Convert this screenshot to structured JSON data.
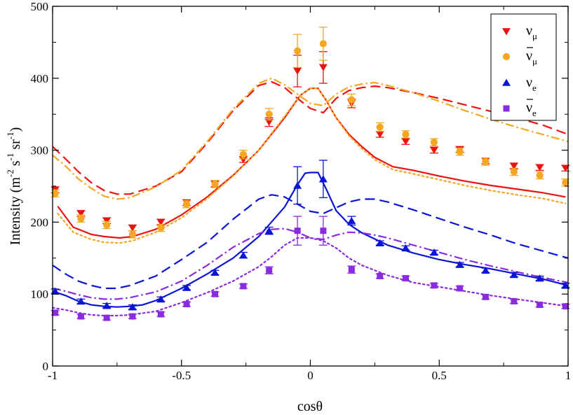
{
  "chart_data": {
    "type": "scatter",
    "title": "",
    "xlabel": "cosθ",
    "ylabel": "Intensity (m⁻² s⁻¹ sr⁻¹)",
    "ylabel_parts": {
      "main": "Intensity (m",
      "exp1": "-2",
      "mid1": " s",
      "exp2": "-1",
      "mid2": " sr",
      "exp3": "-1",
      "end": ")"
    },
    "xlim": [
      -1,
      1
    ],
    "ylim": [
      0,
      500
    ],
    "grid": false,
    "legend_position": "top-right",
    "x_ticks": [
      -1,
      -0.5,
      0,
      0.5,
      1
    ],
    "x_tick_labels": [
      "-1",
      "-0.5",
      "0",
      "0.5",
      "1"
    ],
    "y_ticks": [
      0,
      100,
      200,
      300,
      400,
      500
    ],
    "y_tick_labels": [
      "0",
      "100",
      "200",
      "300",
      "400",
      "500"
    ],
    "series": [
      {
        "name": "numu",
        "legend_main": "ν",
        "legend_sub": "μ",
        "legend_bar": false,
        "color": "#ee1111",
        "marker": "triangle-down",
        "points": [
          {
            "x": -0.99,
            "y": 245,
            "err": 4
          },
          {
            "x": -0.89,
            "y": 212,
            "err": 4
          },
          {
            "x": -0.79,
            "y": 202,
            "err": 4
          },
          {
            "x": -0.69,
            "y": 192,
            "err": 4
          },
          {
            "x": -0.58,
            "y": 200,
            "err": 4
          },
          {
            "x": -0.48,
            "y": 227,
            "err": 4
          },
          {
            "x": -0.37,
            "y": 253,
            "err": 4
          },
          {
            "x": -0.26,
            "y": 287,
            "err": 4
          },
          {
            "x": -0.16,
            "y": 339,
            "err": 6
          },
          {
            "x": -0.05,
            "y": 410,
            "err": 22
          },
          {
            "x": 0.05,
            "y": 415,
            "err": 22
          },
          {
            "x": 0.16,
            "y": 365,
            "err": 6
          },
          {
            "x": 0.27,
            "y": 322,
            "err": 4
          },
          {
            "x": 0.37,
            "y": 312,
            "err": 4
          },
          {
            "x": 0.48,
            "y": 300,
            "err": 4
          },
          {
            "x": 0.58,
            "y": 301,
            "err": 4
          },
          {
            "x": 0.68,
            "y": 285,
            "err": 4
          },
          {
            "x": 0.79,
            "y": 278,
            "err": 4
          },
          {
            "x": 0.89,
            "y": 276,
            "err": 4
          },
          {
            "x": 0.99,
            "y": 275,
            "err": 4
          }
        ],
        "curves": [
          {
            "style": "solid",
            "x": [
              -0.98,
              -0.92,
              -0.85,
              -0.8,
              -0.74,
              -0.69,
              -0.6,
              -0.5,
              -0.4,
              -0.3,
              -0.2,
              -0.1,
              -0.04,
              0.0,
              0.03,
              0.06,
              0.1,
              0.15,
              0.2,
              0.25,
              0.32,
              0.4,
              0.5,
              0.6,
              0.7,
              0.8,
              0.9,
              0.99
            ],
            "y": [
              222,
              193,
              183,
              180,
              178,
              180,
              190,
              210,
              235,
              265,
              300,
              345,
              376,
              386,
              386,
              370,
              345,
              322,
              305,
              290,
              277,
              272,
              264,
              257,
              251,
              246,
              241,
              235
            ]
          },
          {
            "style": "dash",
            "x": [
              -1.0,
              -0.95,
              -0.9,
              -0.85,
              -0.8,
              -0.75,
              -0.7,
              -0.6,
              -0.5,
              -0.4,
              -0.3,
              -0.2,
              -0.15,
              -0.1,
              -0.05,
              0.0,
              0.05,
              0.1,
              0.15,
              0.2,
              0.25,
              0.3,
              0.4,
              0.5,
              0.6,
              0.7,
              0.8,
              0.9,
              1.0
            ],
            "y": [
              305,
              288,
              270,
              255,
              244,
              239,
              239,
              250,
              270,
              310,
              355,
              390,
              395,
              387,
              372,
              358,
              352,
              372,
              383,
              387,
              389,
              387,
              380,
              372,
              363,
              354,
              345,
              335,
              322
            ]
          }
        ]
      },
      {
        "name": "numubar",
        "legend_main": "ν",
        "legend_sub": "μ",
        "legend_bar": true,
        "color": "#f5a623",
        "marker": "circle",
        "points": [
          {
            "x": -0.99,
            "y": 240,
            "err": 5
          },
          {
            "x": -0.89,
            "y": 205,
            "err": 5
          },
          {
            "x": -0.79,
            "y": 196,
            "err": 5
          },
          {
            "x": -0.69,
            "y": 183,
            "err": 5
          },
          {
            "x": -0.58,
            "y": 192,
            "err": 5
          },
          {
            "x": -0.48,
            "y": 225,
            "err": 5
          },
          {
            "x": -0.37,
            "y": 253,
            "err": 5
          },
          {
            "x": -0.26,
            "y": 294,
            "err": 6
          },
          {
            "x": -0.16,
            "y": 350,
            "err": 8
          },
          {
            "x": -0.05,
            "y": 438,
            "err": 23
          },
          {
            "x": 0.05,
            "y": 448,
            "err": 23
          },
          {
            "x": 0.16,
            "y": 370,
            "err": 8
          },
          {
            "x": 0.27,
            "y": 332,
            "err": 6
          },
          {
            "x": 0.37,
            "y": 322,
            "err": 5
          },
          {
            "x": 0.48,
            "y": 311,
            "err": 5
          },
          {
            "x": 0.58,
            "y": 298,
            "err": 5
          },
          {
            "x": 0.68,
            "y": 284,
            "err": 5
          },
          {
            "x": 0.79,
            "y": 270,
            "err": 5
          },
          {
            "x": 0.89,
            "y": 265,
            "err": 5
          },
          {
            "x": 0.99,
            "y": 255,
            "err": 5
          }
        ],
        "curves": [
          {
            "style": "dot",
            "x": [
              -0.98,
              -0.92,
              -0.85,
              -0.8,
              -0.74,
              -0.69,
              -0.6,
              -0.5,
              -0.4,
              -0.3,
              -0.2,
              -0.1,
              -0.04,
              0.0,
              0.03,
              0.06,
              0.1,
              0.15,
              0.2,
              0.25,
              0.32,
              0.4,
              0.5,
              0.6,
              0.7,
              0.8,
              0.9,
              0.99
            ],
            "y": [
              212,
              186,
              176,
              172,
              171,
              174,
              186,
              206,
              233,
              264,
              300,
              347,
              376,
              386,
              386,
              370,
              345,
              320,
              302,
              287,
              273,
              267,
              259,
              251,
              244,
              238,
              233,
              226
            ]
          },
          {
            "style": "dashdot",
            "x": [
              -1.0,
              -0.95,
              -0.9,
              -0.85,
              -0.8,
              -0.75,
              -0.7,
              -0.6,
              -0.5,
              -0.4,
              -0.3,
              -0.2,
              -0.15,
              -0.1,
              -0.05,
              0.0,
              0.05,
              0.1,
              0.15,
              0.2,
              0.25,
              0.3,
              0.4,
              0.5,
              0.6,
              0.7,
              0.8,
              0.9,
              1.0
            ],
            "y": [
              293,
              278,
              260,
              247,
              236,
              232,
              234,
              249,
              272,
              312,
              357,
              393,
              400,
              391,
              378,
              365,
              362,
              378,
              388,
              392,
              394,
              390,
              380,
              368,
              355,
              343,
              332,
              322,
              312
            ]
          }
        ]
      },
      {
        "name": "nue",
        "legend_main": "ν",
        "legend_sub": "e",
        "legend_bar": false,
        "color": "#0a14d6",
        "marker": "triangle-up",
        "points": [
          {
            "x": -0.99,
            "y": 104,
            "err": 3
          },
          {
            "x": -0.89,
            "y": 90,
            "err": 3
          },
          {
            "x": -0.79,
            "y": 84,
            "err": 3
          },
          {
            "x": -0.69,
            "y": 82,
            "err": 3
          },
          {
            "x": -0.58,
            "y": 93,
            "err": 3
          },
          {
            "x": -0.48,
            "y": 109,
            "err": 3
          },
          {
            "x": -0.37,
            "y": 130,
            "err": 3
          },
          {
            "x": -0.26,
            "y": 154,
            "err": 4
          },
          {
            "x": -0.16,
            "y": 188,
            "err": 5
          },
          {
            "x": -0.05,
            "y": 251,
            "err": 26
          },
          {
            "x": 0.05,
            "y": 260,
            "err": 26
          },
          {
            "x": 0.16,
            "y": 202,
            "err": 6
          },
          {
            "x": 0.27,
            "y": 171,
            "err": 3
          },
          {
            "x": 0.37,
            "y": 164,
            "err": 3
          },
          {
            "x": 0.48,
            "y": 158,
            "err": 3
          },
          {
            "x": 0.58,
            "y": 141,
            "err": 3
          },
          {
            "x": 0.68,
            "y": 133,
            "err": 3
          },
          {
            "x": 0.79,
            "y": 127,
            "err": 3
          },
          {
            "x": 0.89,
            "y": 122,
            "err": 3
          },
          {
            "x": 0.99,
            "y": 112,
            "err": 3
          }
        ],
        "curves": [
          {
            "style": "solid",
            "x": [
              -1.0,
              -0.95,
              -0.9,
              -0.85,
              -0.8,
              -0.75,
              -0.7,
              -0.65,
              -0.6,
              -0.5,
              -0.4,
              -0.3,
              -0.2,
              -0.1,
              -0.05,
              -0.02,
              0.0,
              0.03,
              0.06,
              0.1,
              0.15,
              0.2,
              0.3,
              0.4,
              0.5,
              0.6,
              0.7,
              0.8,
              0.9,
              1.0
            ],
            "y": [
              104,
              98,
              90,
              85,
              83,
              82,
              83,
              85,
              91,
              108,
              128,
              150,
              180,
              221,
              252,
              268,
              269,
              269,
              247,
              216,
              197,
              185,
              168,
              157,
              148,
              141,
              135,
              128,
              121,
              112
            ]
          },
          {
            "style": "dash",
            "x": [
              -1.0,
              -0.95,
              -0.9,
              -0.85,
              -0.8,
              -0.75,
              -0.7,
              -0.6,
              -0.5,
              -0.4,
              -0.3,
              -0.2,
              -0.15,
              -0.1,
              -0.05,
              0.0,
              0.05,
              0.1,
              0.15,
              0.2,
              0.25,
              0.3,
              0.4,
              0.5,
              0.6,
              0.7,
              0.8,
              0.9,
              1.0
            ],
            "y": [
              140,
              128,
              118,
              112,
              108,
              108,
              112,
              125,
              148,
              172,
              204,
              232,
              238,
              235,
              225,
              215,
              212,
              220,
              228,
              232,
              232,
              228,
              217,
              205,
              193,
              182,
              170,
              160,
              150
            ]
          }
        ]
      },
      {
        "name": "nuebar",
        "legend_main": "ν",
        "legend_sub": "e",
        "legend_bar": true,
        "color": "#8a2be2",
        "marker": "square",
        "points": [
          {
            "x": -0.99,
            "y": 74,
            "err": 3
          },
          {
            "x": -0.89,
            "y": 69,
            "err": 3
          },
          {
            "x": -0.79,
            "y": 67,
            "err": 3
          },
          {
            "x": -0.69,
            "y": 69,
            "err": 3
          },
          {
            "x": -0.58,
            "y": 72,
            "err": 3
          },
          {
            "x": -0.48,
            "y": 86,
            "err": 3
          },
          {
            "x": -0.37,
            "y": 100,
            "err": 3
          },
          {
            "x": -0.26,
            "y": 111,
            "err": 3
          },
          {
            "x": -0.16,
            "y": 133,
            "err": 5
          },
          {
            "x": -0.05,
            "y": 188,
            "err": 20
          },
          {
            "x": 0.05,
            "y": 188,
            "err": 20
          },
          {
            "x": 0.16,
            "y": 134,
            "err": 5
          },
          {
            "x": 0.27,
            "y": 125,
            "err": 3
          },
          {
            "x": 0.37,
            "y": 122,
            "err": 3
          },
          {
            "x": 0.48,
            "y": 112,
            "err": 3
          },
          {
            "x": 0.58,
            "y": 108,
            "err": 3
          },
          {
            "x": 0.68,
            "y": 96,
            "err": 3
          },
          {
            "x": 0.79,
            "y": 90,
            "err": 3
          },
          {
            "x": 0.89,
            "y": 85,
            "err": 3
          },
          {
            "x": 0.99,
            "y": 83,
            "err": 3
          }
        ],
        "curves": [
          {
            "style": "dot",
            "x": [
              -1.0,
              -0.95,
              -0.9,
              -0.85,
              -0.8,
              -0.75,
              -0.7,
              -0.6,
              -0.5,
              -0.4,
              -0.3,
              -0.2,
              -0.15,
              -0.1,
              -0.05,
              0.0,
              0.05,
              0.1,
              0.15,
              0.2,
              0.3,
              0.4,
              0.5,
              0.6,
              0.7,
              0.8,
              0.9,
              1.0
            ],
            "y": [
              81,
              78,
              74,
              71,
              70,
              70,
              71,
              76,
              88,
              102,
              118,
              138,
              152,
              168,
              178,
              178,
              174,
              164,
              150,
              140,
              126,
              116,
              110,
              104,
              98,
              93,
              88,
              83
            ]
          },
          {
            "style": "dashdot",
            "x": [
              -1.0,
              -0.95,
              -0.9,
              -0.85,
              -0.8,
              -0.75,
              -0.7,
              -0.6,
              -0.5,
              -0.4,
              -0.3,
              -0.2,
              -0.15,
              -0.1,
              -0.05,
              0.0,
              0.05,
              0.1,
              0.15,
              0.2,
              0.25,
              0.3,
              0.4,
              0.5,
              0.6,
              0.7,
              0.8,
              0.9,
              1.0
            ],
            "y": [
              108,
              104,
              99,
              95,
              93,
              93,
              95,
              103,
              118,
              140,
              165,
              184,
              190,
              191,
              186,
              178,
              176,
              182,
              186,
              185,
              182,
              178,
              168,
              158,
              148,
              139,
              131,
              123,
              116
            ]
          }
        ]
      }
    ]
  }
}
